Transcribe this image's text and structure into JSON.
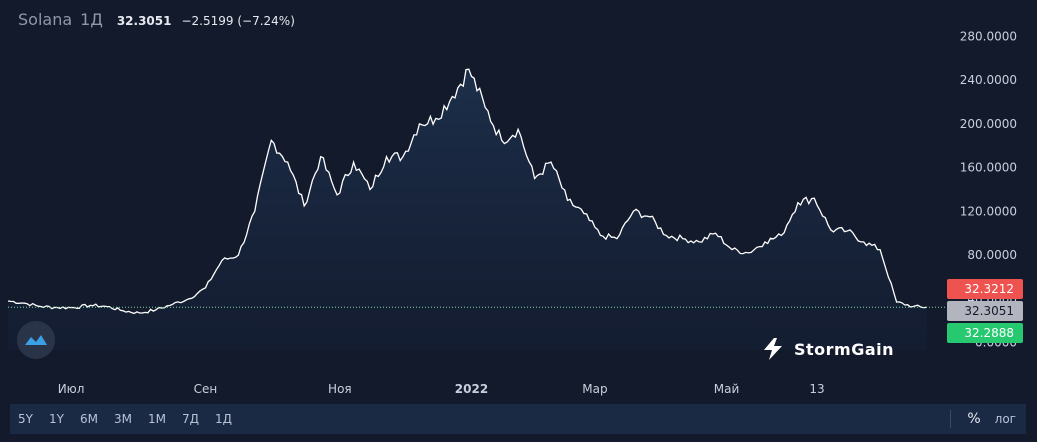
{
  "legend": {
    "symbol": "Solana",
    "timeframe": "1Д",
    "last": "32.3051",
    "change": "−2.5199 (−7.24%)"
  },
  "price_tags": {
    "high": "32.3212",
    "last": "32.3051",
    "low": "32.2888"
  },
  "brand": {
    "name": "StormGain"
  },
  "toolbar": {
    "ranges": [
      "5Y",
      "1Y",
      "6M",
      "3M",
      "1M",
      "7Д",
      "1Д"
    ],
    "percent": "%",
    "log": "лог"
  },
  "colors": {
    "background": "#131a2b",
    "line": "#ffffff",
    "tag_high": "#ef5350",
    "tag_last": "#b2b5be",
    "tag_low": "#26c96f",
    "toolbar": "#1a2a45"
  },
  "chart_data": {
    "type": "area",
    "title": "Solana",
    "x_ticks": [
      "Июл",
      "Сен",
      "Ноя",
      "2022",
      "Мар",
      "Май",
      "13"
    ],
    "y_ticks": [
      "0.0000",
      "40.0000",
      "80.0000",
      "120.0000",
      "160.0000",
      "200.0000",
      "240.0000",
      "280.0000"
    ],
    "ylim": [
      -5,
      295
    ],
    "xlim": [
      0,
      338
    ],
    "grid": false,
    "series": [
      {
        "x": [
          0,
          6,
          12,
          18,
          24,
          30,
          36,
          42,
          48,
          54,
          60,
          66,
          72,
          78,
          84,
          90,
          96,
          102,
          108,
          114,
          120,
          126,
          132,
          138,
          144,
          150,
          156,
          162,
          168,
          174,
          180,
          186,
          192,
          198,
          204,
          210,
          216,
          222,
          228,
          234,
          240,
          246,
          252,
          258,
          264,
          270,
          276,
          282,
          288,
          294,
          300,
          306,
          312,
          318,
          324,
          330,
          335
        ],
        "y": [
          38,
          36,
          33,
          32,
          32,
          34,
          33,
          29,
          27,
          30,
          35,
          40,
          50,
          75,
          80,
          120,
          185,
          165,
          125,
          170,
          135,
          165,
          140,
          170,
          170,
          200,
          205,
          225,
          250,
          215,
          185,
          195,
          150,
          165,
          130,
          118,
          98,
          95,
          120,
          115,
          98,
          95,
          92,
          100,
          85,
          82,
          92,
          98,
          128,
          132,
          103,
          102,
          92,
          85,
          37,
          33,
          32.3051
        ]
      }
    ],
    "last_price": 32.3051,
    "price_tags": [
      32.3212,
      32.3051,
      32.2888
    ]
  }
}
